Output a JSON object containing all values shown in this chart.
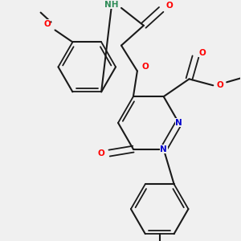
{
  "background_color": "#f0f0f0",
  "bond_color": "#1a1a1a",
  "atom_colors": {
    "O": "#ff0000",
    "N": "#0000cc",
    "H": "#2e8b57",
    "C": "#1a1a1a"
  },
  "figsize": [
    3.0,
    3.0
  ],
  "dpi": 100
}
